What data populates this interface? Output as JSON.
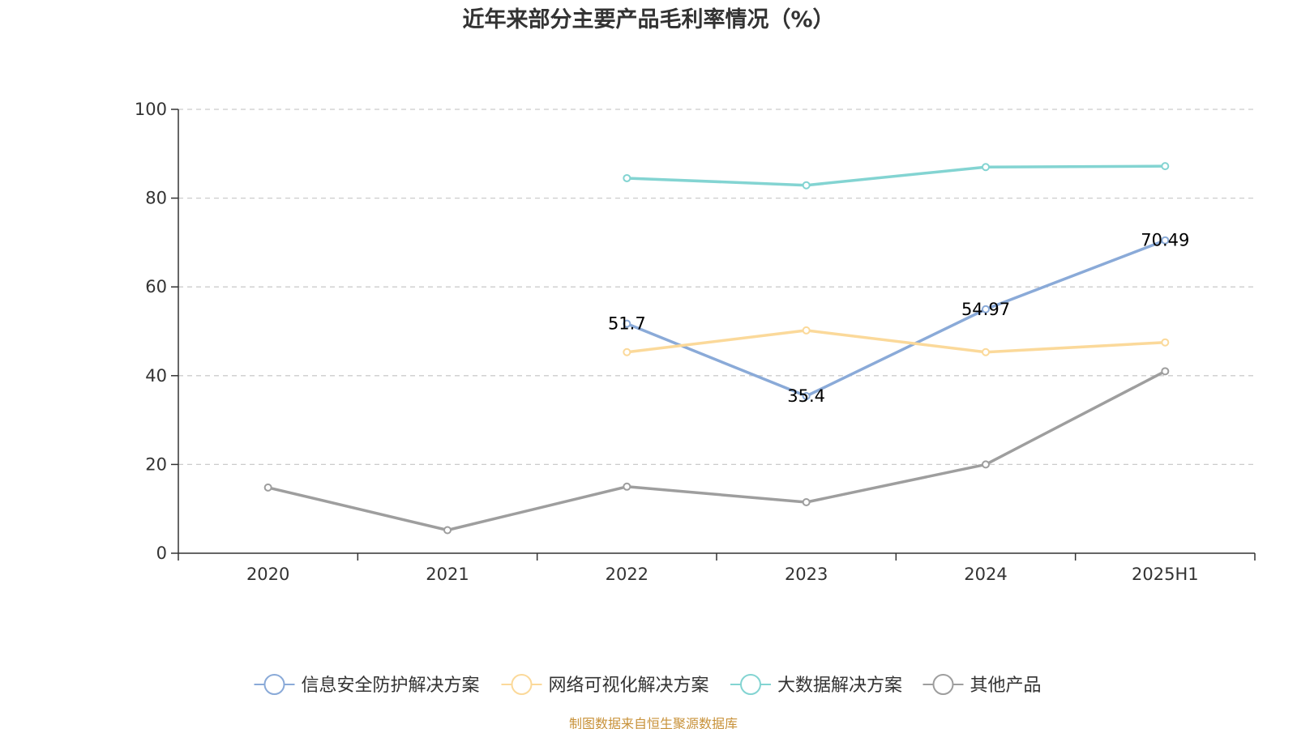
{
  "colors": {
    "series": [
      "#8aaad8",
      "#fbd99a",
      "#83d4d2",
      "#9e9e9e"
    ],
    "source": "#c8923a"
  },
  "source_text": "制图数据来自恒生聚源数据库",
  "chart_data": {
    "type": "line",
    "title": "近年来部分主要产品毛利率情况（%）",
    "xlabel": "",
    "ylabel": "",
    "categories": [
      "2020",
      "2021",
      "2022",
      "2023",
      "2024",
      "2025H1"
    ],
    "ylim": [
      0,
      100
    ],
    "yticks": [
      0,
      20,
      40,
      60,
      80,
      100
    ],
    "grid": true,
    "legend_position": "bottom",
    "series": [
      {
        "name": "信息安全防护解决方案",
        "values": [
          null,
          null,
          51.7,
          35.4,
          54.97,
          70.49
        ],
        "labels": [
          null,
          null,
          "51.7",
          "35.4",
          "54.97",
          "70.49"
        ]
      },
      {
        "name": "网络可视化解决方案",
        "values": [
          null,
          null,
          45.3,
          50.2,
          45.3,
          47.5
        ],
        "labels": []
      },
      {
        "name": "大数据解决方案",
        "values": [
          null,
          null,
          84.5,
          82.9,
          87.0,
          87.2
        ],
        "labels": []
      },
      {
        "name": "其他产品",
        "values": [
          14.8,
          5.2,
          15.0,
          11.5,
          20.0,
          41.0
        ],
        "labels": []
      }
    ]
  }
}
